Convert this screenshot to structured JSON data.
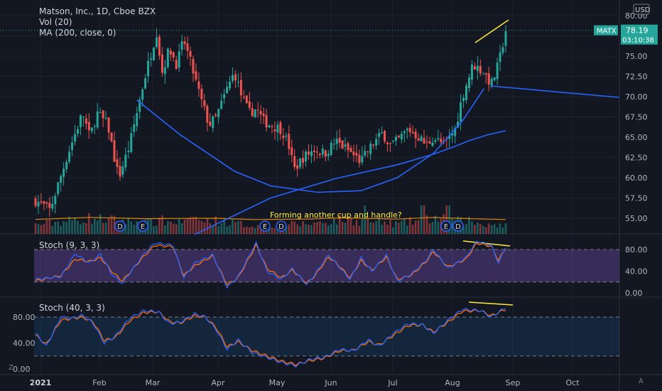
{
  "header": {
    "title": "Matson, Inc., 1D, Cboe BZX",
    "indicator_vol": "Vol (20)",
    "indicator_ma": "MA (200, close, 0)"
  },
  "price_axis": {
    "currency": "USD",
    "ticks": [
      "80.00",
      "77.50",
      "75.00",
      "72.50",
      "70.00",
      "67.50",
      "65.00",
      "62.50",
      "60.00",
      "57.50",
      "55.00"
    ],
    "last_price": "78.19",
    "countdown": "03:10:38",
    "symbol": "MATX"
  },
  "time_axis": {
    "labels": [
      "2021",
      "Feb",
      "Mar",
      "Apr",
      "May",
      "Jun",
      "Jul",
      "Aug",
      "Sep",
      "Oct"
    ]
  },
  "annotation": "Forming another cup and handle?",
  "event_markers": [
    "D",
    "E",
    "E",
    "D",
    "E",
    "D"
  ],
  "stoch1": {
    "label": "Stoch (9, 3, 3)",
    "ticks": [
      "80.00",
      "40.00",
      "0.00"
    ]
  },
  "stoch2": {
    "label": "Stoch (40, 3, 3)",
    "ticks": [
      "80.00",
      "40.00",
      "0.00"
    ]
  },
  "corner": {
    "left": "Z",
    "right": "A"
  },
  "colors": {
    "up": "#26a69a",
    "down": "#ef5350",
    "ma": "#2962ff",
    "stoch_k": "#2962ff",
    "stoch_d": "#ff6d00",
    "drawing": "#ffeb3b"
  },
  "chart_data": {
    "type": "candlestick",
    "symbol": "MATX",
    "y_range": [
      52.5,
      81.0
    ],
    "x_range_months": [
      "2021-01",
      "2021-10"
    ],
    "price_path": [
      [
        0.0,
        57.2
      ],
      [
        0.4,
        56.0
      ],
      [
        0.9,
        63.0
      ],
      [
        1.3,
        68.0
      ],
      [
        1.5,
        65.0
      ],
      [
        1.7,
        68.0
      ],
      [
        2.0,
        66.5
      ],
      [
        2.2,
        62.0
      ],
      [
        2.3,
        60.0
      ],
      [
        2.6,
        64.0
      ],
      [
        2.8,
        68.0
      ],
      [
        3.0,
        72.0
      ],
      [
        3.2,
        75.5
      ],
      [
        3.35,
        78.0
      ],
      [
        3.5,
        73.0
      ],
      [
        3.7,
        76.0
      ],
      [
        3.9,
        74.0
      ],
      [
        4.1,
        77.0
      ],
      [
        4.3,
        74.0
      ],
      [
        4.55,
        70.0
      ],
      [
        4.8,
        66.5
      ],
      [
        5.0,
        67.5
      ],
      [
        5.3,
        71.0
      ],
      [
        5.5,
        73.0
      ],
      [
        5.7,
        70.0
      ],
      [
        5.9,
        68.0
      ],
      [
        6.1,
        68.5
      ],
      [
        6.3,
        67.0
      ],
      [
        6.5,
        66.5
      ],
      [
        6.8,
        66.0
      ],
      [
        7.0,
        64.0
      ],
      [
        7.15,
        61.0
      ],
      [
        7.4,
        62.5
      ],
      [
        7.7,
        63.5
      ],
      [
        8.0,
        63.0
      ],
      [
        8.3,
        64.5
      ],
      [
        8.6,
        63.5
      ],
      [
        9.0,
        62.0
      ],
      [
        9.3,
        64.0
      ],
      [
        9.6,
        65.5
      ],
      [
        9.8,
        64.0
      ],
      [
        10.0,
        64.5
      ],
      [
        10.3,
        66.0
      ],
      [
        10.6,
        65.0
      ],
      [
        10.8,
        64.0
      ],
      [
        11.0,
        65.0
      ],
      [
        11.3,
        64.0
      ],
      [
        11.6,
        66.0
      ],
      [
        11.8,
        70.0
      ],
      [
        12.1,
        74.0
      ],
      [
        12.4,
        73.0
      ],
      [
        12.6,
        71.5
      ],
      [
        12.8,
        74.0
      ],
      [
        13.0,
        78.2
      ]
    ],
    "volume_path": [
      [
        0,
        0.32
      ],
      [
        1.5,
        0.55
      ],
      [
        3.0,
        0.4
      ],
      [
        5.0,
        0.45
      ],
      [
        6.0,
        0.3
      ],
      [
        7.5,
        0.35
      ],
      [
        8.5,
        0.5
      ],
      [
        10.0,
        0.35
      ],
      [
        11.0,
        0.55
      ],
      [
        12.0,
        0.4
      ],
      [
        13.0,
        0.3
      ]
    ],
    "volume_spikes": [
      [
        3.5,
        0.65
      ],
      [
        4.4,
        0.6
      ],
      [
        9.1,
        1.0
      ],
      [
        10.7,
        1.0
      ],
      [
        11.4,
        1.0
      ],
      [
        12.0,
        0.6
      ]
    ],
    "ma_curve": [
      [
        2.8,
        69.6
      ],
      [
        4.0,
        65.3
      ],
      [
        5.5,
        60.8
      ],
      [
        6.5,
        59.0
      ],
      [
        7.8,
        58.2
      ],
      [
        9.0,
        58.4
      ],
      [
        10.0,
        60.0
      ],
      [
        11.0,
        63.0
      ],
      [
        11.8,
        67.0
      ],
      [
        12.4,
        71.0
      ]
    ],
    "trend_line": [
      [
        4.4,
        53.0
      ],
      [
        6.5,
        57.5
      ],
      [
        8.3,
        59.9
      ],
      [
        10.0,
        61.6
      ],
      [
        11.0,
        62.9
      ],
      [
        11.5,
        63.7
      ],
      [
        12.0,
        64.6
      ],
      [
        12.5,
        65.3
      ],
      [
        13.0,
        65.8
      ]
    ],
    "stoch1_k": [
      [
        0,
        25
      ],
      [
        0.7,
        30
      ],
      [
        1.1,
        72
      ],
      [
        1.5,
        55
      ],
      [
        1.8,
        72
      ],
      [
        2.1,
        35
      ],
      [
        2.4,
        18
      ],
      [
        3.0,
        72
      ],
      [
        3.3,
        92
      ],
      [
        3.8,
        88
      ],
      [
        4.1,
        28
      ],
      [
        4.4,
        55
      ],
      [
        4.9,
        70
      ],
      [
        5.3,
        10
      ],
      [
        5.6,
        30
      ],
      [
        6.1,
        92
      ],
      [
        6.4,
        40
      ],
      [
        6.8,
        25
      ],
      [
        7.1,
        45
      ],
      [
        7.5,
        15
      ],
      [
        7.7,
        32
      ],
      [
        8.1,
        70
      ],
      [
        8.3,
        55
      ],
      [
        8.7,
        25
      ],
      [
        9.0,
        65
      ],
      [
        9.3,
        40
      ],
      [
        9.7,
        70
      ],
      [
        10.0,
        22
      ],
      [
        10.4,
        35
      ],
      [
        10.8,
        60
      ],
      [
        11.0,
        80
      ],
      [
        11.4,
        45
      ],
      [
        11.9,
        65
      ],
      [
        12.2,
        95
      ],
      [
        12.6,
        88
      ],
      [
        12.8,
        55
      ],
      [
        13.0,
        85
      ]
    ],
    "stoch1_d": [
      [
        0,
        22
      ],
      [
        0.7,
        32
      ],
      [
        1.1,
        62
      ],
      [
        1.5,
        58
      ],
      [
        1.8,
        65
      ],
      [
        2.1,
        40
      ],
      [
        2.4,
        22
      ],
      [
        3.0,
        68
      ],
      [
        3.3,
        88
      ],
      [
        3.8,
        85
      ],
      [
        4.1,
        32
      ],
      [
        4.4,
        50
      ],
      [
        4.9,
        68
      ],
      [
        5.3,
        15
      ],
      [
        5.6,
        28
      ],
      [
        6.1,
        88
      ],
      [
        6.4,
        45
      ],
      [
        6.8,
        28
      ],
      [
        7.1,
        42
      ],
      [
        7.5,
        18
      ],
      [
        7.7,
        30
      ],
      [
        8.1,
        66
      ],
      [
        8.3,
        56
      ],
      [
        8.7,
        28
      ],
      [
        9.0,
        60
      ],
      [
        9.3,
        42
      ],
      [
        9.7,
        66
      ],
      [
        10.0,
        25
      ],
      [
        10.4,
        33
      ],
      [
        10.8,
        58
      ],
      [
        11.0,
        76
      ],
      [
        11.4,
        48
      ],
      [
        11.9,
        62
      ],
      [
        12.2,
        92
      ],
      [
        12.6,
        86
      ],
      [
        12.8,
        60
      ],
      [
        13.0,
        83
      ]
    ],
    "stoch2_k": [
      [
        0,
        55
      ],
      [
        0.3,
        35
      ],
      [
        0.7,
        80
      ],
      [
        1.0,
        78
      ],
      [
        1.3,
        83
      ],
      [
        1.6,
        70
      ],
      [
        1.9,
        40
      ],
      [
        2.2,
        50
      ],
      [
        2.6,
        78
      ],
      [
        3.0,
        90
      ],
      [
        3.4,
        88
      ],
      [
        3.7,
        70
      ],
      [
        4.0,
        72
      ],
      [
        4.4,
        85
      ],
      [
        4.7,
        80
      ],
      [
        5.0,
        60
      ],
      [
        5.3,
        30
      ],
      [
        5.6,
        45
      ],
      [
        6.0,
        25
      ],
      [
        6.4,
        18
      ],
      [
        6.8,
        10
      ],
      [
        7.2,
        5
      ],
      [
        7.6,
        15
      ],
      [
        8.0,
        18
      ],
      [
        8.4,
        30
      ],
      [
        8.8,
        28
      ],
      [
        9.2,
        45
      ],
      [
        9.5,
        35
      ],
      [
        9.9,
        55
      ],
      [
        10.3,
        70
      ],
      [
        10.7,
        68
      ],
      [
        11.0,
        55
      ],
      [
        11.4,
        75
      ],
      [
        11.8,
        92
      ],
      [
        12.3,
        90
      ],
      [
        12.6,
        80
      ],
      [
        13.0,
        95
      ]
    ],
    "stoch2_d": [
      [
        0,
        52
      ],
      [
        0.3,
        38
      ],
      [
        0.7,
        75
      ],
      [
        1.0,
        78
      ],
      [
        1.3,
        80
      ],
      [
        1.6,
        72
      ],
      [
        1.9,
        44
      ],
      [
        2.2,
        48
      ],
      [
        2.6,
        74
      ],
      [
        3.0,
        87
      ],
      [
        3.4,
        88
      ],
      [
        3.7,
        73
      ],
      [
        4.0,
        71
      ],
      [
        4.4,
        82
      ],
      [
        4.7,
        80
      ],
      [
        5.0,
        63
      ],
      [
        5.3,
        34
      ],
      [
        5.6,
        42
      ],
      [
        6.0,
        28
      ],
      [
        6.4,
        20
      ],
      [
        6.8,
        12
      ],
      [
        7.2,
        7
      ],
      [
        7.6,
        13
      ],
      [
        8.0,
        17
      ],
      [
        8.4,
        28
      ],
      [
        8.8,
        29
      ],
      [
        9.2,
        42
      ],
      [
        9.5,
        37
      ],
      [
        9.9,
        52
      ],
      [
        10.3,
        67
      ],
      [
        10.7,
        68
      ],
      [
        11.0,
        57
      ],
      [
        11.4,
        72
      ],
      [
        11.8,
        89
      ],
      [
        12.3,
        90
      ],
      [
        12.6,
        82
      ],
      [
        13.0,
        92
      ]
    ]
  }
}
